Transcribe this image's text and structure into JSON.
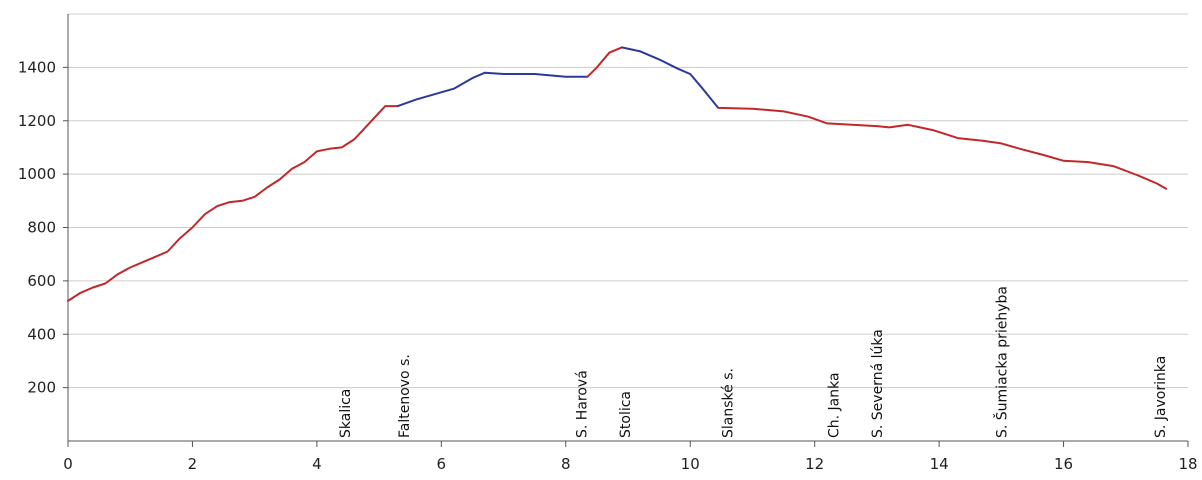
{
  "chart_data": {
    "type": "line",
    "xlim": [
      0,
      18
    ],
    "ylim": [
      0,
      1600
    ],
    "x_ticks": [
      0,
      2,
      4,
      6,
      8,
      10,
      12,
      14,
      16,
      18
    ],
    "y_ticks": [
      200,
      400,
      600,
      800,
      1000,
      1200,
      1400
    ],
    "grid": "horizontal",
    "colors": {
      "ascent": "#c0282a",
      "descent": "#2a3a9c"
    },
    "segments": [
      {
        "color_role": "ascent",
        "points": [
          [
            0,
            525
          ],
          [
            0.2,
            555
          ],
          [
            0.4,
            575
          ],
          [
            0.6,
            590
          ],
          [
            0.8,
            625
          ],
          [
            1.0,
            650
          ],
          [
            1.2,
            670
          ],
          [
            1.4,
            690
          ],
          [
            1.6,
            710
          ],
          [
            1.8,
            760
          ],
          [
            2.0,
            800
          ],
          [
            2.2,
            850
          ],
          [
            2.4,
            880
          ],
          [
            2.6,
            895
          ],
          [
            2.8,
            900
          ],
          [
            3.0,
            915
          ],
          [
            3.2,
            950
          ],
          [
            3.4,
            980
          ],
          [
            3.6,
            1020
          ],
          [
            3.8,
            1045
          ],
          [
            4.0,
            1085
          ],
          [
            4.2,
            1095
          ],
          [
            4.4,
            1100
          ],
          [
            4.6,
            1130
          ],
          [
            4.8,
            1180
          ],
          [
            5.0,
            1230
          ],
          [
            5.1,
            1255
          ],
          [
            5.3,
            1255
          ]
        ]
      },
      {
        "color_role": "descent",
        "points": [
          [
            5.3,
            1255
          ],
          [
            5.6,
            1280
          ],
          [
            5.9,
            1300
          ],
          [
            6.2,
            1320
          ],
          [
            6.5,
            1360
          ],
          [
            6.7,
            1380
          ],
          [
            7.0,
            1375
          ],
          [
            7.5,
            1375
          ],
          [
            8.0,
            1365
          ],
          [
            8.35,
            1365
          ]
        ]
      },
      {
        "color_role": "ascent",
        "points": [
          [
            8.35,
            1365
          ],
          [
            8.5,
            1400
          ],
          [
            8.7,
            1455
          ],
          [
            8.9,
            1475
          ]
        ]
      },
      {
        "color_role": "descent",
        "points": [
          [
            8.9,
            1475
          ],
          [
            9.2,
            1460
          ],
          [
            9.5,
            1430
          ],
          [
            9.8,
            1395
          ],
          [
            10.0,
            1375
          ],
          [
            10.2,
            1320
          ],
          [
            10.45,
            1248
          ]
        ]
      },
      {
        "color_role": "ascent",
        "points": [
          [
            10.45,
            1248
          ],
          [
            11.0,
            1245
          ],
          [
            11.5,
            1235
          ],
          [
            11.9,
            1215
          ],
          [
            12.2,
            1190
          ],
          [
            12.6,
            1185
          ],
          [
            13.0,
            1180
          ],
          [
            13.2,
            1175
          ],
          [
            13.5,
            1185
          ],
          [
            13.9,
            1165
          ],
          [
            14.3,
            1135
          ],
          [
            14.7,
            1125
          ],
          [
            15.0,
            1115
          ],
          [
            15.3,
            1095
          ],
          [
            15.7,
            1070
          ],
          [
            16.0,
            1050
          ],
          [
            16.4,
            1045
          ],
          [
            16.8,
            1030
          ],
          [
            17.2,
            995
          ],
          [
            17.5,
            965
          ],
          [
            17.65,
            945
          ]
        ]
      }
    ],
    "waypoints": [
      {
        "label": "Skalica",
        "x": 4.45
      },
      {
        "label": "Faltenovo s.",
        "x": 5.4
      },
      {
        "label": "S. Harová",
        "x": 8.25
      },
      {
        "label": "Stolica",
        "x": 8.95
      },
      {
        "label": "Slanské s.",
        "x": 10.6
      },
      {
        "label": "Ch. Janka",
        "x": 12.3
      },
      {
        "label": "S. Severná lúka",
        "x": 13.0
      },
      {
        "label": "S. Šumiacka priehyba",
        "x": 15.0
      },
      {
        "label": "S. Javorinka",
        "x": 17.55
      }
    ]
  }
}
